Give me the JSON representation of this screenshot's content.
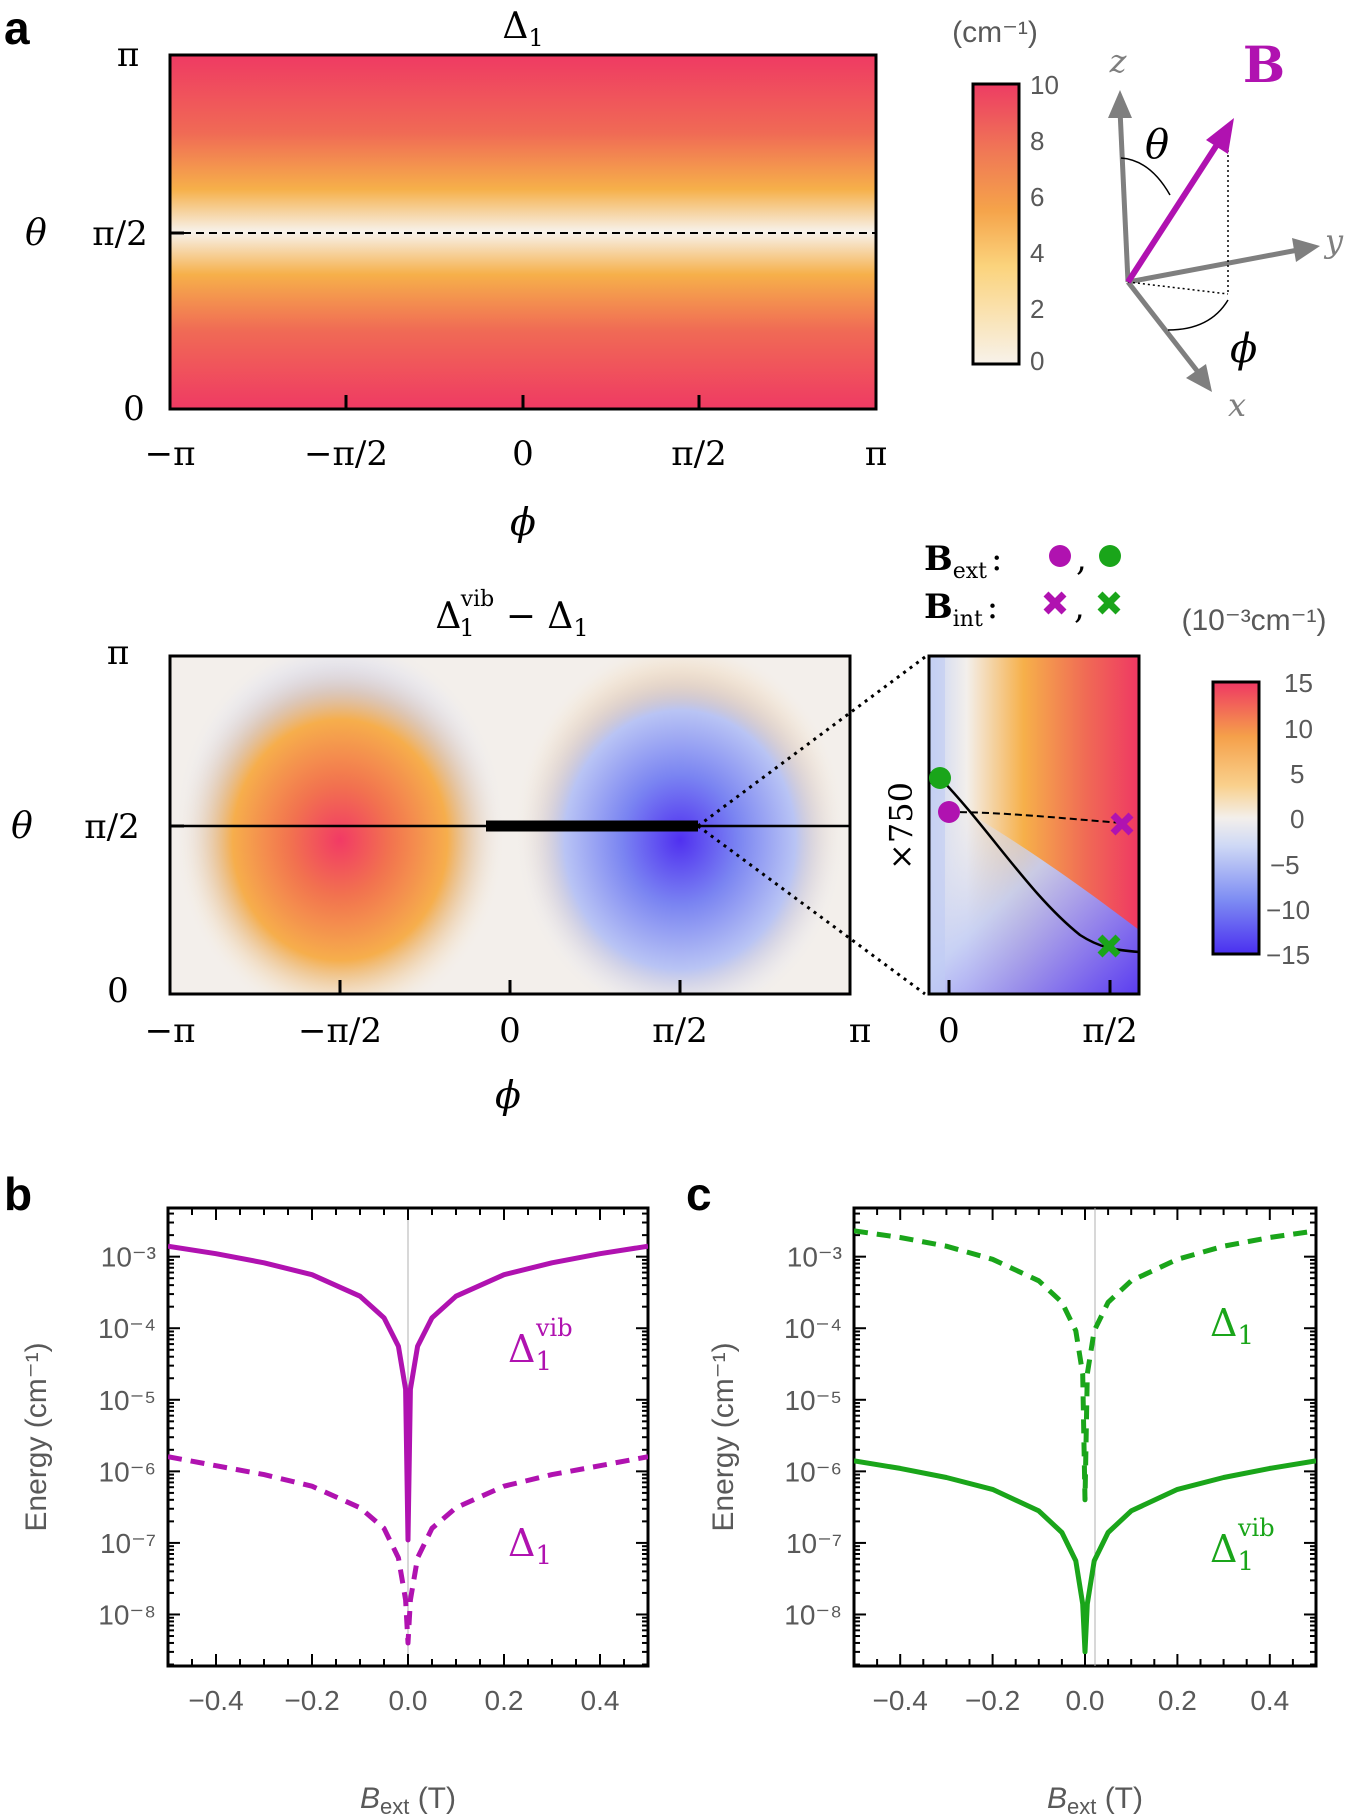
{
  "panels": {
    "a": "a",
    "b": "b",
    "c": "c"
  },
  "heatmap_top": {
    "title_main": "Δ",
    "title_sub": "1",
    "theta_symbol": "θ",
    "phi_symbol": "ϕ",
    "x_ticks": [
      "−π",
      "−π/2",
      "0",
      "π/2",
      "π"
    ],
    "y_ticks": [
      "π",
      "π/2",
      "0"
    ],
    "dashed_line": "θ = π/2"
  },
  "colorbar_top": {
    "unit": "(cm⁻¹)",
    "ticks": [
      "10",
      "8",
      "6",
      "4",
      "2",
      "0"
    ],
    "colors": [
      "#f8f2ea",
      "#fbd37c",
      "#f5a34a",
      "#f07a55",
      "#ee4d63",
      "#ed3c63"
    ]
  },
  "axes_diagram": {
    "z": "z",
    "y": "y",
    "x": "x",
    "theta": "θ",
    "phi": "ϕ",
    "B": "B",
    "B_color": "#b012b0",
    "axis_color": "#7f7f7f"
  },
  "heatmap_mid": {
    "title_main": "Δ",
    "title_sub": "1",
    "title_sup": "vib",
    "title_rest": " − Δ",
    "title_rest_sub": "1",
    "theta_symbol": "θ",
    "phi_symbol": "ϕ",
    "x_ticks": [
      "−π",
      "−π/2",
      "0",
      "π/2",
      "π"
    ],
    "y_ticks": [
      "π",
      "π/2",
      "0"
    ]
  },
  "inset": {
    "scale_label": "×750",
    "x_ticks": [
      "0",
      "π/2"
    ],
    "legend_ext_label": "B",
    "legend_ext_sub": "ext",
    "legend_int_label": "B",
    "legend_int_sub": "int",
    "legend_sep": ":",
    "legend_comma": ",",
    "purple": "#b012b0",
    "green": "#1aa51a"
  },
  "colorbar_mid": {
    "unit": "(10⁻³cm⁻¹)",
    "ticks": [
      "15",
      "10",
      "5",
      "0",
      "−5",
      "−10",
      "−15"
    ],
    "colors": [
      "#5a3cf0",
      "#9aa8f5",
      "#f2efec",
      "#f5a34a",
      "#ef3d63"
    ]
  },
  "chart_data": [
    {
      "type": "heatmap",
      "panel": "a",
      "title": "Δ1",
      "xlabel": "ϕ",
      "ylabel": "θ",
      "xlim": [
        "−π",
        "π"
      ],
      "ylim": [
        "0",
        "π"
      ],
      "zlim": [
        0,
        10
      ],
      "zunit": "cm⁻¹",
      "description_values": {
        "theta_0": 10,
        "theta_pi_over_2": 0,
        "theta_pi": 10
      }
    },
    {
      "type": "heatmap",
      "panel": "a",
      "title": "Δ1vib − Δ1",
      "xlabel": "ϕ",
      "ylabel": "θ",
      "xlim": [
        "−π",
        "π"
      ],
      "ylim": [
        "0",
        "π"
      ],
      "zlim": [
        -15,
        15
      ],
      "zunit": "10⁻³cm⁻¹",
      "inset_scale": 750,
      "inset_xlim": [
        "0",
        "π/2"
      ]
    },
    {
      "type": "line",
      "panel": "b",
      "xlabel_main": "B",
      "xlabel_sub": "ext",
      "xlabel_unit": " (T)",
      "ylabel": "Energy (cm⁻¹)",
      "yscale": "log",
      "xlim": [
        -0.5,
        0.5
      ],
      "x_ticks": [
        "−0.4",
        "−0.2",
        "0.0",
        "0.2",
        "0.4"
      ],
      "y_ticks": [
        "10⁻³",
        "10⁻⁴",
        "10⁻⁵",
        "10⁻⁶",
        "10⁻⁷",
        "10⁻⁸"
      ],
      "color": "#b012b0",
      "series": [
        {
          "name": "Δ1vib",
          "style": "solid",
          "x": [
            -0.5,
            -0.4,
            -0.3,
            -0.2,
            -0.1,
            -0.05,
            -0.02,
            -0.005,
            0.0,
            0.005,
            0.02,
            0.05,
            0.1,
            0.2,
            0.3,
            0.4,
            0.5
          ],
          "y": [
            0.0014,
            0.0011,
            0.00082,
            0.00056,
            0.00028,
            0.00014,
            5.6e-05,
            1.4e-05,
            1.1e-07,
            1.4e-05,
            5.6e-05,
            0.00014,
            0.00028,
            0.00056,
            0.00082,
            0.0011,
            0.0014
          ]
        },
        {
          "name": "Δ1",
          "style": "dashed",
          "x": [
            -0.5,
            -0.4,
            -0.3,
            -0.2,
            -0.1,
            -0.05,
            -0.02,
            -0.005,
            0.0,
            0.005,
            0.02,
            0.05,
            0.1,
            0.2,
            0.3,
            0.4,
            0.5
          ],
          "y": [
            1.6e-06,
            1.2e-06,
            9e-07,
            6.2e-07,
            3.1e-07,
            1.6e-07,
            6.2e-08,
            1.6e-08,
            4e-09,
            1.6e-08,
            6.2e-08,
            1.6e-07,
            3.1e-07,
            6.2e-07,
            9e-07,
            1.2e-06,
            1.6e-06
          ]
        }
      ]
    },
    {
      "type": "line",
      "panel": "c",
      "xlabel_main": "B",
      "xlabel_sub": "ext",
      "xlabel_unit": " (T)",
      "ylabel": "Energy (cm⁻¹)",
      "yscale": "log",
      "xlim": [
        -0.5,
        0.5
      ],
      "x_ticks": [
        "−0.4",
        "−0.2",
        "0.0",
        "0.2",
        "0.4"
      ],
      "y_ticks": [
        "10⁻³",
        "10⁻⁴",
        "10⁻⁵",
        "10⁻⁶",
        "10⁻⁷",
        "10⁻⁸"
      ],
      "color": "#1aa51a",
      "series": [
        {
          "name": "Δ1",
          "style": "dashed",
          "x": [
            -0.5,
            -0.4,
            -0.3,
            -0.2,
            -0.1,
            -0.05,
            -0.02,
            -0.005,
            0.0,
            0.005,
            0.02,
            0.05,
            0.1,
            0.2,
            0.3,
            0.4,
            0.5
          ],
          "y": [
            0.0023,
            0.00185,
            0.0014,
            0.00092,
            0.00046,
            0.00023,
            9.2e-05,
            2.3e-05,
            4e-07,
            2.3e-05,
            9.2e-05,
            0.00023,
            0.00046,
            0.00092,
            0.0014,
            0.00185,
            0.0023
          ]
        },
        {
          "name": "Δ1vib",
          "style": "solid",
          "x": [
            -0.5,
            -0.4,
            -0.3,
            -0.2,
            -0.1,
            -0.05,
            -0.02,
            -0.005,
            0.0,
            0.005,
            0.02,
            0.05,
            0.1,
            0.2,
            0.3,
            0.4,
            0.5
          ],
          "y": [
            1.4e-06,
            1.1e-06,
            8.2e-07,
            5.6e-07,
            2.8e-07,
            1.4e-07,
            5.6e-08,
            1.4e-08,
            3e-09,
            1.4e-08,
            5.6e-08,
            1.4e-07,
            2.8e-07,
            5.6e-07,
            8.2e-07,
            1.1e-06,
            1.4e-06
          ]
        }
      ]
    }
  ],
  "line_labels": {
    "b_solid_main": "Δ",
    "b_solid_sub": "1",
    "b_solid_sup": "vib",
    "b_dashed_main": "Δ",
    "b_dashed_sub": "1",
    "c_dashed_main": "Δ",
    "c_dashed_sub": "1",
    "c_solid_main": "Δ",
    "c_solid_sub": "1",
    "c_solid_sup": "vib"
  }
}
